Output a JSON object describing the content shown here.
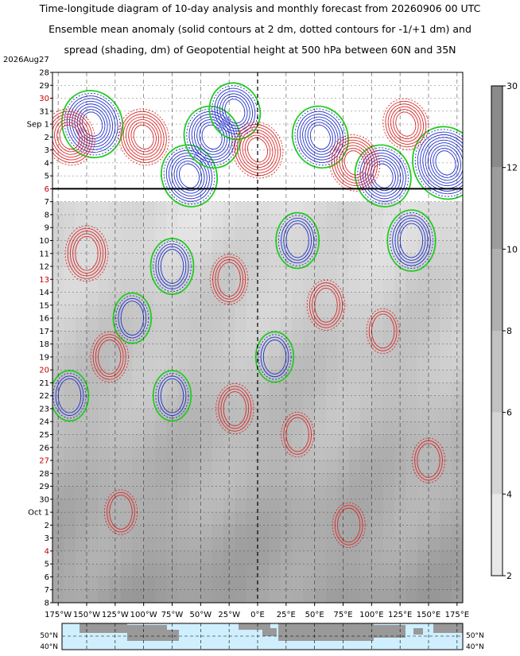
{
  "title": {
    "line1": "Time-longitude diagram of 10-day analysis and monthly forecast from 20260906 00 UTC",
    "line2": "Ensemble mean anomaly (solid contours at 2 dm, dotted contours for -1/+1 dm) and",
    "line3": "spread (shading, dm) of Geopotential height at 500 hPa between 60N and 35N"
  },
  "colors": {
    "positive_contour": "#dd2a2a",
    "negative_contour": "#2233cc",
    "zero_contour": "#22cc22",
    "grid": "#000000",
    "shade_light": "#e8e8e8",
    "shade_dark": "#8a8a8a",
    "ocean": "#cfefff",
    "land": "#999999"
  },
  "chart_data": {
    "type": "heatmap",
    "start_label": "2026Aug27",
    "forecast_start_row": 10,
    "y_rows": [
      {
        "label": "28",
        "red": false
      },
      {
        "label": "29",
        "red": false
      },
      {
        "label": "30",
        "red": true
      },
      {
        "label": "31",
        "red": false
      },
      {
        "label": "Sep  1",
        "red": false
      },
      {
        "label": "2",
        "red": false
      },
      {
        "label": "3",
        "red": false
      },
      {
        "label": "4",
        "red": false
      },
      {
        "label": "5",
        "red": false
      },
      {
        "label": "6",
        "red": true
      },
      {
        "label": "7",
        "red": false
      },
      {
        "label": "8",
        "red": false
      },
      {
        "label": "9",
        "red": false
      },
      {
        "label": "10",
        "red": false
      },
      {
        "label": "11",
        "red": false
      },
      {
        "label": "12",
        "red": false
      },
      {
        "label": "13",
        "red": true
      },
      {
        "label": "14",
        "red": false
      },
      {
        "label": "15",
        "red": false
      },
      {
        "label": "16",
        "red": false
      },
      {
        "label": "17",
        "red": false
      },
      {
        "label": "18",
        "red": false
      },
      {
        "label": "19",
        "red": false
      },
      {
        "label": "20",
        "red": true
      },
      {
        "label": "21",
        "red": false
      },
      {
        "label": "22",
        "red": false
      },
      {
        "label": "23",
        "red": false
      },
      {
        "label": "24",
        "red": false
      },
      {
        "label": "25",
        "red": false
      },
      {
        "label": "26",
        "red": false
      },
      {
        "label": "27",
        "red": true
      },
      {
        "label": "28",
        "red": false
      },
      {
        "label": "29",
        "red": false
      },
      {
        "label": "30",
        "red": false
      },
      {
        "label": "Oct  1",
        "red": false
      },
      {
        "label": "2",
        "red": false
      },
      {
        "label": "3",
        "red": false
      },
      {
        "label": "4",
        "red": true
      },
      {
        "label": "5",
        "red": false
      },
      {
        "label": "6",
        "red": false
      },
      {
        "label": "7",
        "red": false
      },
      {
        "label": "8",
        "red": false
      }
    ],
    "x_ticks": [
      {
        "lon": -175,
        "label": "175°W"
      },
      {
        "lon": -150,
        "label": "150°W"
      },
      {
        "lon": -125,
        "label": "125°W"
      },
      {
        "lon": -100,
        "label": "100°W"
      },
      {
        "lon": -75,
        "label": "75°W"
      },
      {
        "lon": -50,
        "label": "50°W"
      },
      {
        "lon": -25,
        "label": "25°W"
      },
      {
        "lon": 0,
        "label": "0°E"
      },
      {
        "lon": 25,
        "label": "25°E"
      },
      {
        "lon": 50,
        "label": "50°E"
      },
      {
        "lon": 75,
        "label": "75°E"
      },
      {
        "lon": 100,
        "label": "100°E"
      },
      {
        "lon": 125,
        "label": "125°E"
      },
      {
        "lon": 150,
        "label": "150°E"
      },
      {
        "lon": 175,
        "label": "175°E"
      }
    ],
    "xlim": [
      -180,
      180
    ],
    "colorbar": {
      "levels": [
        2,
        4,
        6,
        8,
        10,
        12,
        30
      ],
      "labels": [
        "2",
        "4",
        "6",
        "8",
        "10",
        "12",
        "30"
      ]
    },
    "map_strip": {
      "lat_labels_left": [
        "50°N",
        "40°N"
      ],
      "lat_labels_right": [
        "50°N",
        "40°N"
      ]
    },
    "anomaly_features": [
      {
        "sign": "neg",
        "lon": -145,
        "day": 4,
        "amp": 1.0
      },
      {
        "sign": "neg",
        "lon": -60,
        "day": 8,
        "amp": 0.9
      },
      {
        "sign": "neg",
        "lon": -40,
        "day": 5,
        "amp": 0.8
      },
      {
        "sign": "neg",
        "lon": -75,
        "day": 15,
        "amp": 0.8
      },
      {
        "sign": "neg",
        "lon": -20,
        "day": 3,
        "amp": 0.7
      },
      {
        "sign": "neg",
        "lon": 55,
        "day": 5,
        "amp": 0.8
      },
      {
        "sign": "neg",
        "lon": 110,
        "day": 8,
        "amp": 0.8
      },
      {
        "sign": "neg",
        "lon": 165,
        "day": 7,
        "amp": 1.1
      },
      {
        "sign": "neg",
        "lon": 135,
        "day": 13,
        "amp": 0.9
      },
      {
        "sign": "neg",
        "lon": 35,
        "day": 13,
        "amp": 0.7
      },
      {
        "sign": "neg",
        "lon": -110,
        "day": 19,
        "amp": 0.6
      },
      {
        "sign": "neg",
        "lon": -75,
        "day": 25,
        "amp": 0.6
      },
      {
        "sign": "neg",
        "lon": 15,
        "day": 22,
        "amp": 0.4
      },
      {
        "sign": "neg",
        "lon": -165,
        "day": 25,
        "amp": 0.4
      },
      {
        "sign": "pos",
        "lon": -165,
        "day": 5,
        "amp": 0.9
      },
      {
        "sign": "pos",
        "lon": -100,
        "day": 5,
        "amp": 0.8
      },
      {
        "sign": "pos",
        "lon": -150,
        "day": 14,
        "amp": 1.0
      },
      {
        "sign": "pos",
        "lon": 0,
        "day": 6,
        "amp": 0.9
      },
      {
        "sign": "pos",
        "lon": 85,
        "day": 7,
        "amp": 0.8
      },
      {
        "sign": "pos",
        "lon": 130,
        "day": 4,
        "amp": 0.7
      },
      {
        "sign": "pos",
        "lon": -25,
        "day": 16,
        "amp": 0.8
      },
      {
        "sign": "pos",
        "lon": 60,
        "day": 18,
        "amp": 0.8
      },
      {
        "sign": "pos",
        "lon": -130,
        "day": 22,
        "amp": 0.7
      },
      {
        "sign": "pos",
        "lon": -20,
        "day": 26,
        "amp": 0.7
      },
      {
        "sign": "pos",
        "lon": 110,
        "day": 20,
        "amp": 0.6
      },
      {
        "sign": "pos",
        "lon": 35,
        "day": 28,
        "amp": 0.6
      },
      {
        "sign": "pos",
        "lon": -120,
        "day": 34,
        "amp": 0.6
      },
      {
        "sign": "pos",
        "lon": 80,
        "day": 35,
        "amp": 0.5
      },
      {
        "sign": "pos",
        "lon": 150,
        "day": 30,
        "amp": 0.5
      }
    ]
  }
}
